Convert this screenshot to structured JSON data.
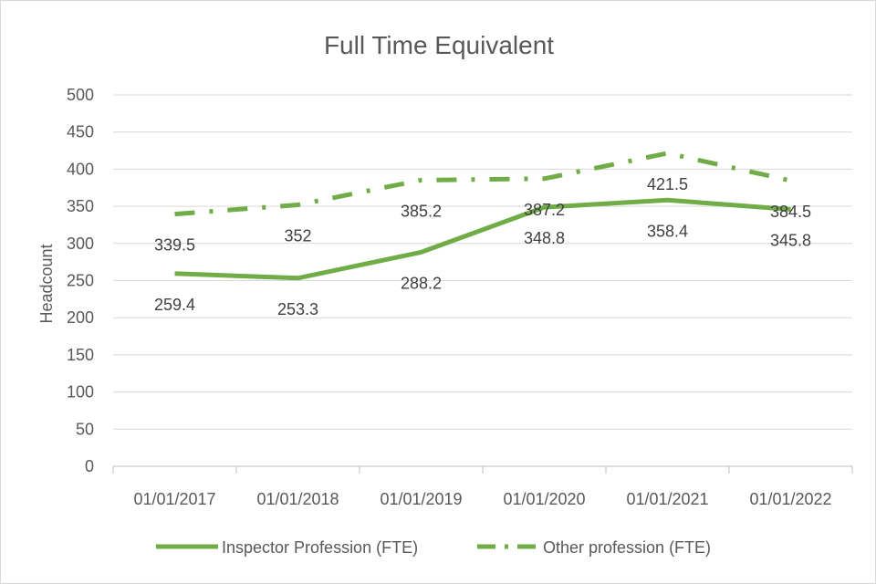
{
  "chart_data": {
    "type": "line",
    "title": "Full Time Equivalent",
    "xlabel": "",
    "ylabel": "Headcount",
    "categories": [
      "01/01/2017",
      "01/01/2018",
      "01/01/2019",
      "01/01/2020",
      "01/01/2021",
      "01/01/2022"
    ],
    "ylim": [
      0,
      500
    ],
    "yticks": [
      0,
      50,
      100,
      150,
      200,
      250,
      300,
      350,
      400,
      450,
      500
    ],
    "grid": true,
    "legend_position": "bottom",
    "series": [
      {
        "name": "Inspector Profession (FTE)",
        "values": [
          259.4,
          253.3,
          288.2,
          348.8,
          358.4,
          345.8
        ],
        "labels": [
          "259.4",
          "253.3",
          "288.2",
          "348.8",
          "358.4",
          "345.8"
        ],
        "color": "#70ad47",
        "style": "solid"
      },
      {
        "name": "Other profession (FTE)",
        "values": [
          339.5,
          352,
          385.2,
          387.2,
          421.5,
          384.5
        ],
        "labels": [
          "339.5",
          "352",
          "385.2",
          "387.2",
          "421.5",
          "384.5"
        ],
        "color": "#70ad47",
        "style": "dash-dot"
      }
    ]
  },
  "colors": {
    "gridline": "#d9d9d9",
    "text": "#595959",
    "series": "#70ad47"
  }
}
